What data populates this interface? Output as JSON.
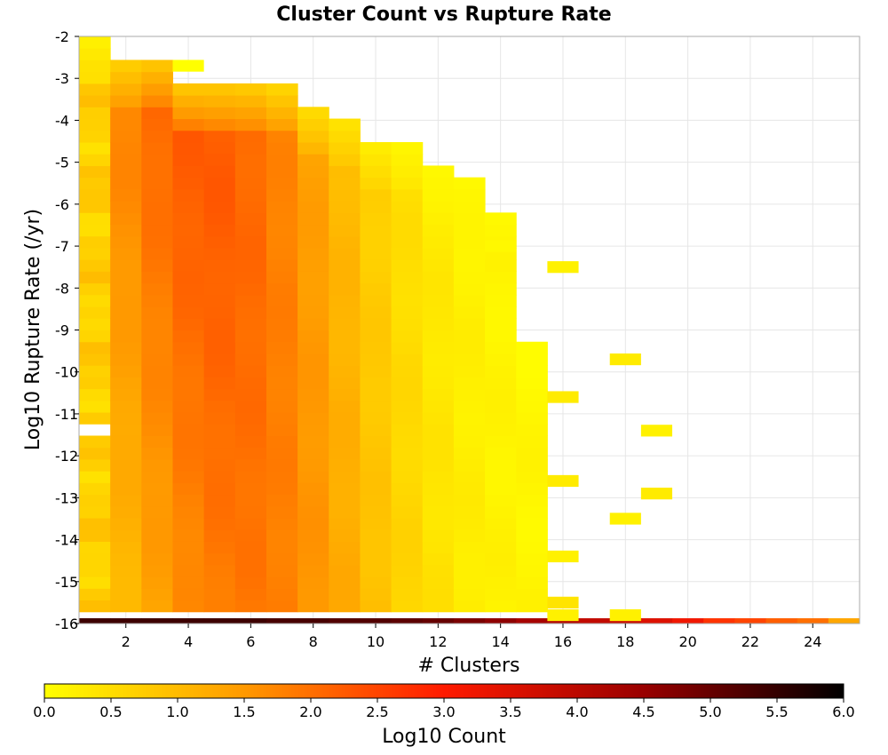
{
  "chart_data": {
    "type": "heatmap",
    "title": "Cluster Count vs Rupture Rate",
    "xlabel": "# Clusters",
    "ylabel": "Log10 Rupture Rate (/yr)",
    "xlim": [
      0.5,
      25.5
    ],
    "ylim": [
      -16,
      -2
    ],
    "x_ticks": [
      2,
      4,
      6,
      8,
      10,
      12,
      14,
      16,
      18,
      20,
      22,
      24
    ],
    "y_ticks": [
      -2,
      -3,
      -4,
      -5,
      -6,
      -7,
      -8,
      -9,
      -10,
      -11,
      -12,
      -13,
      -14,
      -15,
      -16
    ],
    "x_tick_labels": [
      "2",
      "4",
      "6",
      "8",
      "10",
      "12",
      "14",
      "16",
      "18",
      "20",
      "22",
      "24"
    ],
    "y_tick_labels": [
      "-2",
      "-3",
      "-4",
      "-5",
      "-6",
      "-7",
      "-8",
      "-9",
      "-10",
      "-11",
      "-12",
      "-13",
      "-14",
      "-15",
      "-16"
    ],
    "grid": true,
    "colorbar": {
      "label": "Log10 Count",
      "range": [
        0,
        6
      ],
      "ticks": [
        0.0,
        0.5,
        1.0,
        1.5,
        2.0,
        2.5,
        3.0,
        3.5,
        4.0,
        4.5,
        5.0,
        5.5,
        6.0
      ],
      "tick_labels": [
        "0.0",
        "0.5",
        "1.0",
        "1.5",
        "2.0",
        "2.5",
        "3.0",
        "3.5",
        "4.0",
        "4.5",
        "5.0",
        "5.5",
        "6.0"
      ],
      "colormap": [
        [
          0.0,
          "#ffff00"
        ],
        [
          0.25,
          "#ff9900"
        ],
        [
          0.5,
          "#ff1a00"
        ],
        [
          0.75,
          "#990000"
        ],
        [
          1.0,
          "#000000"
        ]
      ]
    },
    "x_bin_width": 1,
    "y_bin_width": 0.28,
    "y_bin_start": -16,
    "base_row": [
      5.4,
      5.4,
      5.4,
      5.4,
      5.4,
      5.4,
      5.3,
      5.3,
      5.2,
      5.2,
      5.1,
      5.0,
      4.8,
      4.6,
      4.3,
      4.1,
      3.9,
      3.8,
      3.5,
      3.2,
      2.7,
      2.5,
      2.2,
      2.0,
      1.3
    ],
    "column_extents": [
      {
        "x": 1,
        "max_y": -2.1
      },
      {
        "x": 2,
        "max_y": -2.7
      },
      {
        "x": 3,
        "max_y": -2.7
      },
      {
        "x": 4,
        "max_y": -3.3
      },
      {
        "x": 5,
        "max_y": -3.3
      },
      {
        "x": 6,
        "max_y": -3.3
      },
      {
        "x": 7,
        "max_y": -3.3
      },
      {
        "x": 8,
        "max_y": -3.8
      },
      {
        "x": 9,
        "max_y": -4.1
      },
      {
        "x": 10,
        "max_y": -4.7
      },
      {
        "x": 11,
        "max_y": -4.7
      },
      {
        "x": 12,
        "max_y": -5.3
      },
      {
        "x": 13,
        "max_y": -5.6
      },
      {
        "x": 14,
        "max_y": -6.2
      },
      {
        "x": 15,
        "max_y": -9.3
      }
    ],
    "sparse_cells": [
      {
        "x": 4,
        "y": -2.7,
        "value": 0.0
      },
      {
        "x": 14,
        "y": -7.0,
        "value": 0.1
      },
      {
        "x": 16,
        "y": -7.5,
        "value": 0.2
      },
      {
        "x": 16,
        "y": -10.6,
        "value": 0.3
      },
      {
        "x": 16,
        "y": -12.6,
        "value": 0.3
      },
      {
        "x": 16,
        "y": -14.4,
        "value": 0.2
      },
      {
        "x": 16,
        "y": -15.5,
        "value": 0.4
      },
      {
        "x": 16,
        "y": -15.8,
        "value": 0.2
      },
      {
        "x": 18,
        "y": -9.7,
        "value": 0.3
      },
      {
        "x": 18,
        "y": -13.5,
        "value": 0.2
      },
      {
        "x": 18,
        "y": -15.8,
        "value": 0.2
      },
      {
        "x": 19,
        "y": -11.4,
        "value": 0.2
      },
      {
        "x": 19,
        "y": -12.9,
        "value": 0.3
      }
    ]
  }
}
